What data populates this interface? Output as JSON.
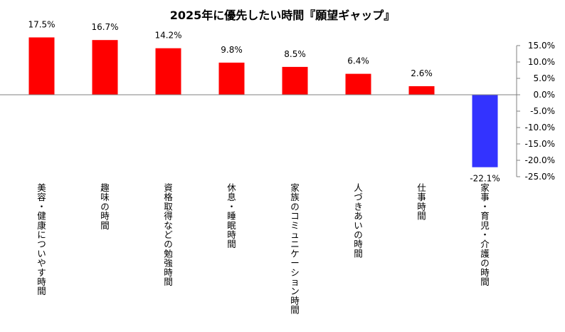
{
  "chart_data": {
    "type": "bar",
    "title": "2025年に優先したい時間『願望ギャップ』",
    "categories": [
      "美容・健康についやす時間",
      "趣味の時間",
      "資格取得などの勉強時間",
      "休息・睡眠時間",
      "家族のコミュニケーション時間",
      "人づきあいの時間",
      "仕事時間",
      "家事・育児・介護の時間"
    ],
    "values": [
      17.5,
      16.7,
      14.2,
      9.8,
      8.5,
      6.4,
      2.6,
      -22.1
    ],
    "data_labels": [
      "17.5%",
      "16.7%",
      "14.2%",
      "9.8%",
      "8.5%",
      "6.4%",
      "2.6%",
      "-22.1%"
    ],
    "ylim": [
      -25,
      15
    ],
    "y_ticks": [
      15,
      10,
      5,
      0,
      -5,
      -10,
      -15,
      -20,
      -25
    ],
    "y_tick_labels": [
      "15.0%",
      "10.0%",
      "5.0%",
      "0.0%",
      "-5.0%",
      "-10.0%",
      "-15.0%",
      "-20.0%",
      "-25.0%"
    ],
    "y_axis_side": "right",
    "xlabel": "",
    "ylabel": "",
    "grid": false,
    "legend": "none",
    "colors": {
      "positive": "#FF0000",
      "negative": "#3333FF",
      "axis": "#808080"
    }
  }
}
